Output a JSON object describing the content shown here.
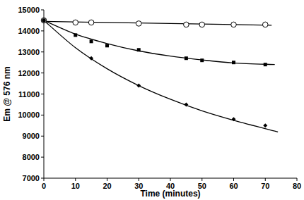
{
  "chart_data": {
    "type": "scatter",
    "x_label": "Time (minutes)",
    "y_label": "Em @ 576 nm",
    "xlim": [
      0,
      80
    ],
    "xticks": [
      0,
      10,
      20,
      30,
      40,
      50,
      60,
      70,
      80
    ],
    "ylim": [
      7000,
      15000
    ],
    "yticks": [
      7000,
      8000,
      9000,
      10000,
      11000,
      12000,
      13000,
      14000,
      15000
    ],
    "grid": false,
    "series": [
      {
        "type": "scatter",
        "marker": "circle-open",
        "color": "#000000",
        "x": [
          0,
          10,
          15,
          30,
          45,
          50,
          60,
          70
        ],
        "values": [
          14500,
          14400,
          14400,
          14350,
          14300,
          14300,
          14300,
          14300
        ]
      },
      {
        "type": "scatter",
        "marker": "square",
        "color": "#000000",
        "x": [
          0,
          10,
          15,
          20,
          30,
          45,
          50,
          60,
          70
        ],
        "values": [
          14500,
          13800,
          13500,
          13300,
          13100,
          12700,
          12600,
          12500,
          12400
        ]
      },
      {
        "type": "scatter",
        "marker": "diamond",
        "color": "#000000",
        "x": [
          0,
          15,
          30,
          45,
          60,
          70
        ],
        "values": [
          14500,
          12700,
          11400,
          10500,
          9800,
          9500
        ]
      },
      {
        "type": "line",
        "line_style": "solid",
        "color": "#000000",
        "x": [
          0,
          20,
          40,
          60,
          72
        ],
        "values": [
          14450,
          14400,
          14350,
          14300,
          14270
        ]
      },
      {
        "type": "line",
        "line_style": "solid",
        "color": "#000000",
        "x": [
          0,
          10,
          20,
          30,
          40,
          50,
          60,
          73
        ],
        "values": [
          14500,
          13850,
          13400,
          13050,
          12800,
          12620,
          12480,
          12400
        ]
      },
      {
        "type": "line",
        "line_style": "solid",
        "color": "#000000",
        "x": [
          0,
          10,
          20,
          30,
          40,
          50,
          60,
          74
        ],
        "values": [
          14500,
          13200,
          12200,
          11400,
          10750,
          10200,
          9750,
          9200
        ]
      }
    ]
  }
}
